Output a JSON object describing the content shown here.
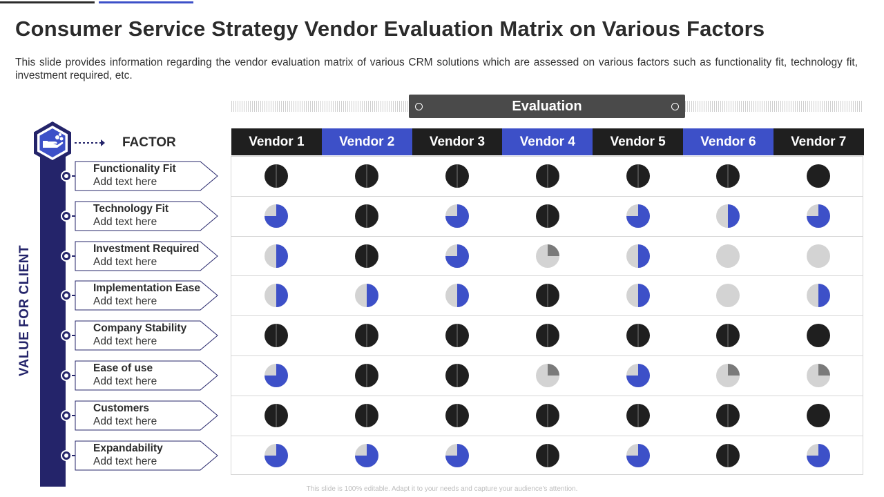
{
  "title": "Consumer Service Strategy Vendor Evaluation Matrix on Various Factors",
  "subtitle": "This slide provides information regarding the vendor evaluation matrix of various CRM solutions which are assessed on various factors such as functionality fit, technology fit, investment required, etc.",
  "evaluation_label": "Evaluation",
  "factor_header": "FACTOR",
  "value_label": "VALUE FOR CLIENT",
  "footer": "This slide is 100% editable. Adapt it to your needs and capture your audience's attention.",
  "colors": {
    "dark": "#1f1f1f",
    "blue": "#3d50c8",
    "navy": "#24246a",
    "light_gray": "#d3d3d3",
    "mid_gray": "#7a7a7a"
  },
  "icons": {
    "factor_icon": "hand-with-coins-icon"
  },
  "vendors": [
    {
      "label": "Vendor 1",
      "style": "dark"
    },
    {
      "label": "Vendor 2",
      "style": "blue"
    },
    {
      "label": "Vendor 3",
      "style": "dark"
    },
    {
      "label": "Vendor 4",
      "style": "blue"
    },
    {
      "label": "Vendor 5",
      "style": "dark"
    },
    {
      "label": "Vendor 6",
      "style": "blue"
    },
    {
      "label": "Vendor 7",
      "style": "dark"
    }
  ],
  "factors": [
    {
      "name": "Functionality Fit",
      "desc": "Add text here"
    },
    {
      "name": "Technology Fit",
      "desc": "Add text here"
    },
    {
      "name": "Investment Required",
      "desc": "Add text here"
    },
    {
      "name": "Implementation Ease",
      "desc": "Add text here"
    },
    {
      "name": "Company Stability",
      "desc": "Add text here"
    },
    {
      "name": "Ease of use",
      "desc": "Add text here"
    },
    {
      "name": "Customers",
      "desc": "Add text here"
    },
    {
      "name": "Expandability",
      "desc": "Add text here"
    }
  ],
  "rating_legend": {
    "full": "fully met (all dark)",
    "full_split": "fully met (dark, divided)",
    "three_quarter": "three quarters (blue)",
    "half": "half (blue)",
    "quarter": "quarter (gray)",
    "none": "not met (empty gray)"
  },
  "ratings": [
    [
      "full_split",
      "full_split",
      "full_split",
      "full_split",
      "full_split",
      "full_split",
      "full"
    ],
    [
      "three_quarter",
      "full_split",
      "three_quarter",
      "full_split",
      "three_quarter",
      "half",
      "three_quarter"
    ],
    [
      "half",
      "full_split",
      "three_quarter",
      "quarter",
      "half",
      "none",
      "none"
    ],
    [
      "half",
      "half",
      "half",
      "full_split",
      "half",
      "none",
      "half"
    ],
    [
      "full_split",
      "full_split",
      "full_split",
      "full_split",
      "full_split",
      "full_split",
      "full"
    ],
    [
      "three_quarter",
      "full_split",
      "full_split",
      "quarter",
      "three_quarter",
      "quarter",
      "quarter"
    ],
    [
      "full_split",
      "full_split",
      "full_split",
      "full_split",
      "full_split",
      "full_split",
      "full"
    ],
    [
      "three_quarter",
      "three_quarter",
      "three_quarter",
      "full_split",
      "three_quarter",
      "full_split",
      "three_quarter"
    ]
  ]
}
